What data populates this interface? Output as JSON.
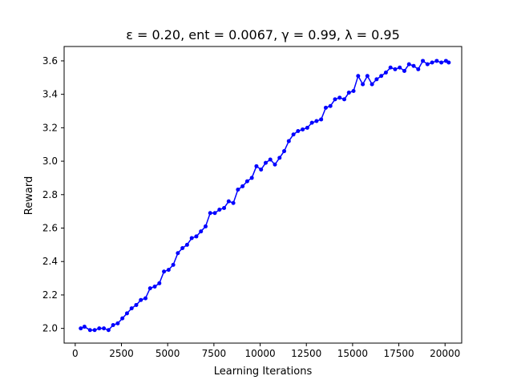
{
  "chart_data": {
    "type": "line",
    "title": "ε = 0.20, ent = 0.0067, γ = 0.99, λ = 0.95",
    "xlabel": "Learning Iterations",
    "ylabel": "Reward",
    "xlim": [
      -600,
      20900
    ],
    "ylim": [
      1.912,
      3.686
    ],
    "xticks": [
      0,
      2500,
      5000,
      7500,
      10000,
      12500,
      15000,
      17500,
      20000
    ],
    "yticks": [
      2.0,
      2.2,
      2.4,
      2.6,
      2.8,
      3.0,
      3.2,
      3.4,
      3.6
    ],
    "grid": false,
    "series": [
      {
        "color": "#0000ff",
        "marker": "circle",
        "x": [
          300,
          500,
          800,
          1050,
          1300,
          1550,
          1800,
          2050,
          2300,
          2550,
          2800,
          3050,
          3300,
          3550,
          3800,
          4050,
          4300,
          4550,
          4800,
          5050,
          5300,
          5550,
          5800,
          6050,
          6300,
          6550,
          6800,
          7050,
          7300,
          7550,
          7800,
          8050,
          8300,
          8550,
          8800,
          9050,
          9300,
          9550,
          9800,
          10050,
          10300,
          10550,
          10800,
          11050,
          11300,
          11550,
          11800,
          12050,
          12300,
          12550,
          12800,
          13050,
          13300,
          13550,
          13800,
          14050,
          14300,
          14550,
          14800,
          15050,
          15300,
          15550,
          15800,
          16050,
          16300,
          16550,
          16800,
          17050,
          17300,
          17550,
          17800,
          18050,
          18300,
          18550,
          18800,
          19050,
          19300,
          19550,
          19800,
          20050,
          20200
        ],
        "y": [
          2.0,
          2.01,
          1.99,
          1.99,
          2.0,
          2.0,
          1.99,
          2.02,
          2.03,
          2.06,
          2.09,
          2.12,
          2.14,
          2.17,
          2.18,
          2.24,
          2.25,
          2.27,
          2.34,
          2.35,
          2.38,
          2.45,
          2.48,
          2.5,
          2.54,
          2.55,
          2.58,
          2.61,
          2.69,
          2.69,
          2.71,
          2.72,
          2.76,
          2.75,
          2.83,
          2.85,
          2.88,
          2.9,
          2.97,
          2.95,
          2.99,
          3.01,
          2.98,
          3.02,
          3.06,
          3.12,
          3.16,
          3.18,
          3.19,
          3.2,
          3.23,
          3.24,
          3.25,
          3.32,
          3.33,
          3.37,
          3.38,
          3.37,
          3.41,
          3.42,
          3.51,
          3.46,
          3.51,
          3.46,
          3.49,
          3.51,
          3.53,
          3.56,
          3.55,
          3.56,
          3.54,
          3.58,
          3.57,
          3.55,
          3.6,
          3.58,
          3.59,
          3.6,
          3.59,
          3.6,
          3.59
        ]
      }
    ]
  }
}
